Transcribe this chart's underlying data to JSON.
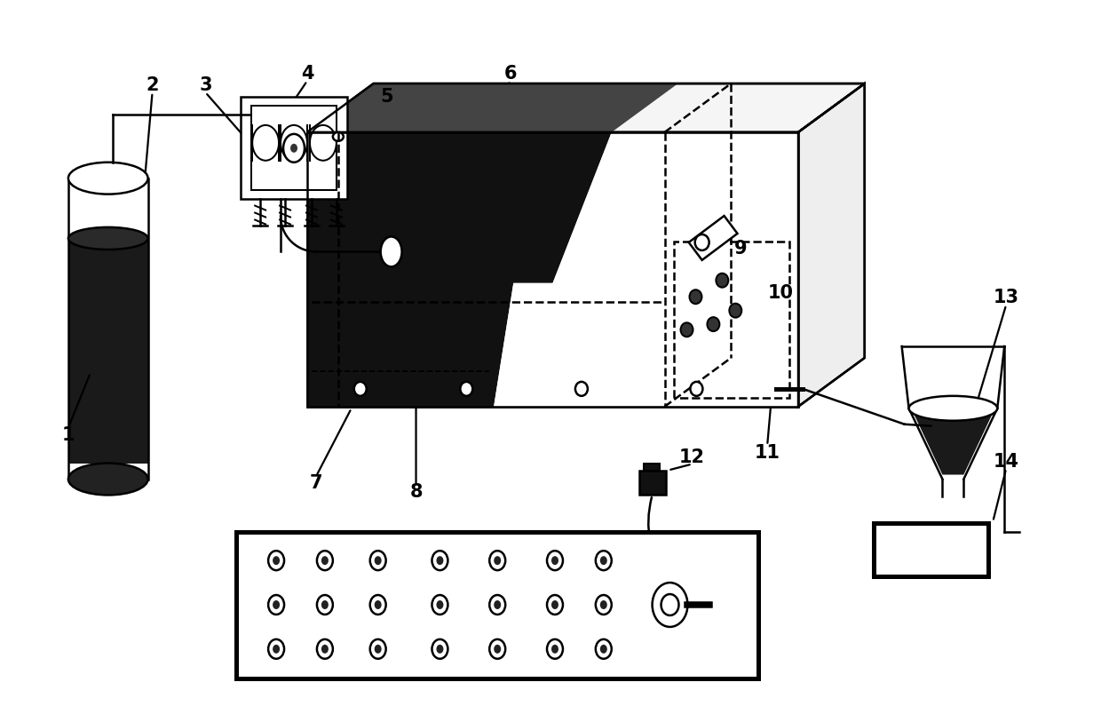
{
  "bg_color": "#ffffff",
  "line_color": "#000000",
  "label_fontsize": 15,
  "label_fontweight": "bold",
  "fig_w": 12.4,
  "fig_h": 7.95,
  "dpi": 100
}
